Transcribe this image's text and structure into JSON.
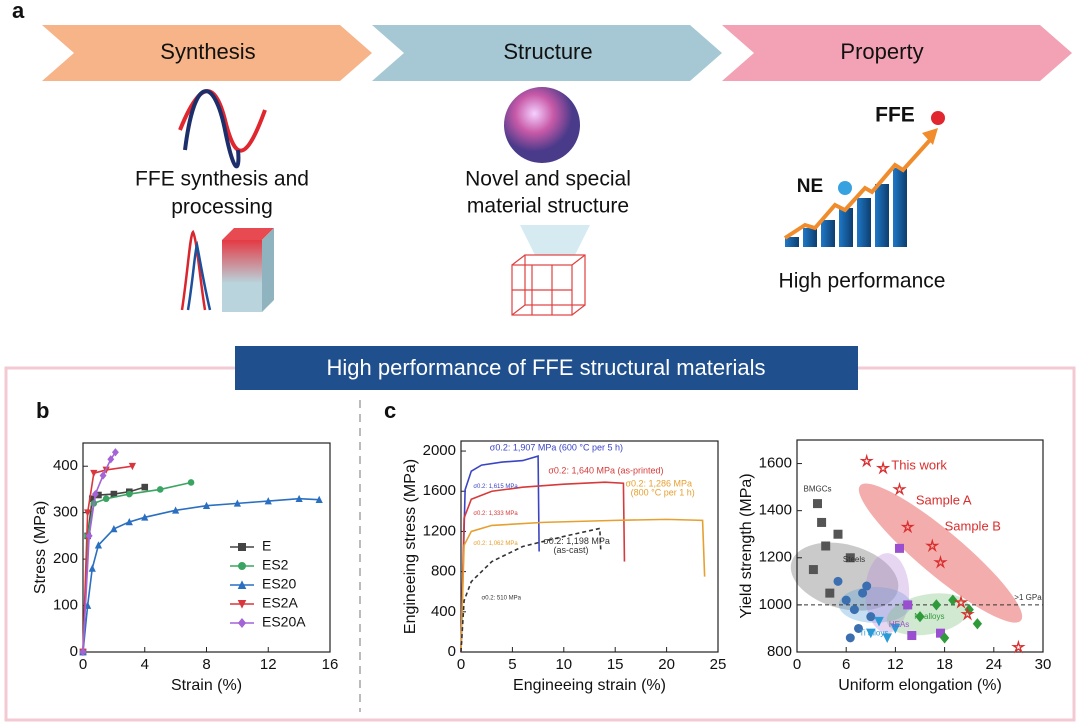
{
  "panel_a": {
    "label": "a",
    "steps": [
      {
        "title": "Synthesis",
        "caption_lines": [
          "FFE synthesis and",
          "processing"
        ]
      },
      {
        "title": "Structure",
        "caption_lines": [
          "Novel and special",
          "material structure"
        ]
      },
      {
        "title": "Property",
        "caption_lines": [
          "High performance"
        ]
      }
    ],
    "property_labels": [
      "FFE",
      "NE"
    ]
  },
  "banner": "High performance of FFE structural materials",
  "panel_b_label": "b",
  "panel_c_label": "c",
  "chart_data": [
    {
      "type": "line",
      "xlabel": "Strain (%)",
      "ylabel": "Stress (MPa)",
      "xlim": [
        0,
        16
      ],
      "xticks": [
        0,
        4,
        8,
        12,
        16
      ],
      "ylim": [
        0,
        450
      ],
      "yticks": [
        0,
        100,
        200,
        300,
        400
      ],
      "legend": "lower right",
      "series": [
        {
          "name": "E",
          "color": "#444444",
          "marker": "square",
          "x": [
            0,
            0.3,
            0.6,
            1,
            2,
            3,
            4
          ],
          "values": [
            0,
            250,
            330,
            338,
            340,
            345,
            355
          ]
        },
        {
          "name": "ES2",
          "color": "#3aa562",
          "marker": "circle",
          "x": [
            0,
            0.3,
            0.7,
            1.5,
            3,
            5,
            7
          ],
          "values": [
            0,
            250,
            320,
            330,
            340,
            350,
            365
          ]
        },
        {
          "name": "ES20",
          "color": "#2a6fc0",
          "marker": "triangle",
          "x": [
            0,
            0.3,
            0.6,
            1,
            2,
            3,
            4,
            6,
            8,
            10,
            12,
            14,
            15.3
          ],
          "values": [
            0,
            100,
            180,
            230,
            265,
            280,
            290,
            305,
            315,
            320,
            325,
            330,
            328
          ]
        },
        {
          "name": "ES2A",
          "color": "#d9363e",
          "marker": "down-triangle",
          "x": [
            0,
            0.3,
            0.7,
            1.5,
            3.2
          ],
          "values": [
            0,
            300,
            385,
            392,
            400
          ]
        },
        {
          "name": "ES20A",
          "color": "#a463d6",
          "marker": "diamond",
          "x": [
            0,
            0.4,
            0.8,
            1.3,
            1.8,
            2.1
          ],
          "values": [
            0,
            250,
            340,
            380,
            415,
            430
          ]
        }
      ]
    },
    {
      "type": "line",
      "xlabel": "Engineeing strain (%)",
      "ylabel": "Engineeing stress (MPa)",
      "xlim": [
        0,
        25
      ],
      "xticks": [
        0,
        5,
        10,
        15,
        20,
        25
      ],
      "ylim": [
        0,
        2100
      ],
      "yticks": [
        0,
        400,
        800,
        1200,
        1600,
        2000
      ],
      "series": [
        {
          "color": "#3b45c4",
          "x": [
            0,
            0.4,
            1,
            2,
            4,
            6,
            7.5,
            7.6
          ],
          "values": [
            0,
            1615,
            1800,
            1860,
            1890,
            1905,
            1950,
            1000
          ]
        },
        {
          "color": "#d63a3a",
          "x": [
            0,
            0.3,
            1,
            3,
            6,
            10,
            14,
            15.8,
            15.9
          ],
          "values": [
            0,
            1333,
            1520,
            1600,
            1640,
            1670,
            1690,
            1680,
            900
          ]
        },
        {
          "color": "#e6a030",
          "x": [
            0,
            0.3,
            1,
            3,
            8,
            15,
            20,
            23.5,
            23.7
          ],
          "values": [
            0,
            1062,
            1200,
            1260,
            1290,
            1310,
            1320,
            1310,
            750
          ]
        },
        {
          "color": "#333333",
          "dash": true,
          "x": [
            0,
            0.3,
            1,
            3,
            6,
            10,
            13.5,
            13.6
          ],
          "values": [
            0,
            510,
            700,
            900,
            1050,
            1150,
            1230,
            1000
          ]
        }
      ],
      "annotations": [
        {
          "text": "σ0.2: 1,907 MPa (600 °C per 5 h)",
          "color": "#3b45c4"
        },
        {
          "text": "σ0.2: 1,615 MPa",
          "color": "#3b45c4"
        },
        {
          "text": "σ0.2: 1,640 MPa (as-printed)",
          "color": "#d63a3a"
        },
        {
          "text": "σ0.2: 1,333 MPa",
          "color": "#d63a3a"
        },
        {
          "text": "σ0.2: 1,286 MPa",
          "color": "#e6a030"
        },
        {
          "text": "(800 °C per 1 h)",
          "color": "#e6a030"
        },
        {
          "text": "σ0.2: 1,062 MPa",
          "color": "#e6a030"
        },
        {
          "text": "σ0.2: 1,198 MPa",
          "color": "#333333"
        },
        {
          "text": "(as-cast)",
          "color": "#333333"
        },
        {
          "text": "σ0.2: 510 MPa",
          "color": "#333333"
        }
      ]
    },
    {
      "type": "scatter",
      "xlabel": "Uniform elongation (%)",
      "ylabel": "Yield strength (MPa)",
      "xlim": [
        0,
        30
      ],
      "xticks": [
        0,
        6,
        12,
        18,
        24,
        30
      ],
      "ylim": [
        800,
        1700
      ],
      "yticks": [
        800,
        1000,
        1200,
        1400,
        1600
      ],
      "hline": 1000,
      "series": [
        {
          "color": "#555555",
          "marker": "square",
          "x": [
            2.5,
            3,
            3.5,
            2,
            4,
            5,
            6.5
          ],
          "values": [
            1430,
            1350,
            1250,
            1150,
            1050,
            1300,
            1200
          ]
        },
        {
          "color": "#3b6fb0",
          "marker": "circle",
          "x": [
            5,
            6,
            7,
            8,
            9,
            7.5,
            6.5,
            8.5
          ],
          "values": [
            1100,
            1020,
            980,
            1050,
            950,
            900,
            860,
            1080
          ]
        },
        {
          "color": "#2a9ad6",
          "marker": "down-triangle",
          "x": [
            9,
            10,
            11,
            12
          ],
          "values": [
            880,
            930,
            860,
            900
          ]
        },
        {
          "color": "#9a4fd0",
          "marker": "square",
          "x": [
            12.5,
            13.5,
            14,
            17.5
          ],
          "values": [
            1240,
            1000,
            870,
            880
          ]
        },
        {
          "color": "#2f9a3a",
          "marker": "diamond",
          "x": [
            15,
            17,
            19,
            21,
            22,
            18
          ],
          "values": [
            950,
            1000,
            1020,
            980,
            920,
            860
          ]
        },
        {
          "color": "#d92e2e",
          "marker": "star",
          "x": [
            8.5,
            10.5,
            12.5,
            13.5,
            16.5,
            17.5,
            20,
            20.8,
            27
          ],
          "values": [
            1610,
            1580,
            1490,
            1330,
            1250,
            1180,
            1010,
            960,
            820
          ]
        }
      ],
      "annotations": [
        {
          "text": "BMGCs",
          "color": "#333333"
        },
        {
          "text": "Steels",
          "color": "#333333"
        },
        {
          "text": "Ti alloys",
          "color": "#2a9ad6"
        },
        {
          "text": "HEAs",
          "color": "#9a4fd0"
        },
        {
          "text": "Ni alloys",
          "color": "#2f9a3a"
        },
        {
          "text": "This work",
          "color": "#d92e2e"
        },
        {
          "text": "Sample A",
          "color": "#d92e2e"
        },
        {
          "text": "Sample B",
          "color": "#d92e2e"
        },
        {
          "text": ">1 GPa",
          "color": "#333333"
        }
      ]
    }
  ]
}
